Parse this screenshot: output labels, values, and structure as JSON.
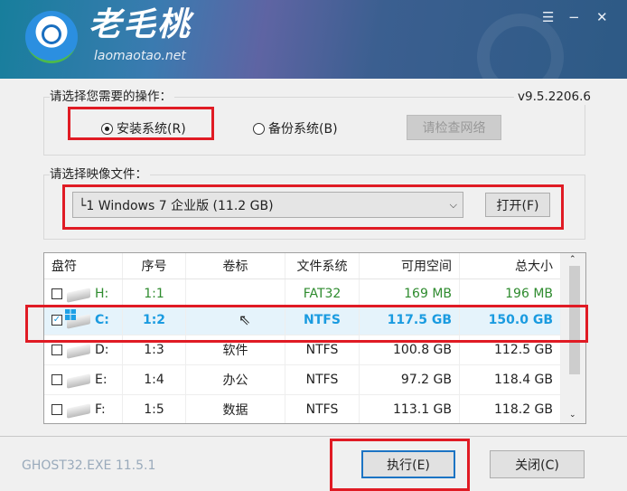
{
  "header": {
    "brand": "老毛桃",
    "domain": "laomaotao.net",
    "menu_icon": "☰",
    "minimize_icon": "−",
    "close_icon": "✕"
  },
  "operation": {
    "label": "请选择您需要的操作：",
    "version": "v9.5.2206.6",
    "install": "安装系统(R)",
    "backup": "备份系统(B)",
    "check_network": "请检查网络",
    "selected": "install"
  },
  "image": {
    "label": "请选择映像文件：",
    "selected": "└1 Windows 7 企业版 (11.2 GB)",
    "open": "打开(F)"
  },
  "table": {
    "headers": [
      "盘符",
      "序号",
      "卷标",
      "文件系统",
      "可用空间",
      "总大小"
    ],
    "rows": [
      {
        "drive": "H:",
        "index": "1:1",
        "label": "",
        "fs": "FAT32",
        "free": "169 MB",
        "total": "196 MB",
        "checked": false,
        "color": "#2e8b2e"
      },
      {
        "drive": "C:",
        "index": "1:2",
        "label": "",
        "fs": "NTFS",
        "free": "117.5 GB",
        "total": "150.0 GB",
        "checked": true,
        "color": "#1a9be0"
      },
      {
        "drive": "D:",
        "index": "1:3",
        "label": "软件",
        "fs": "NTFS",
        "free": "100.8 GB",
        "total": "112.5 GB",
        "checked": false,
        "color": "#222222"
      },
      {
        "drive": "E:",
        "index": "1:4",
        "label": "办公",
        "fs": "NTFS",
        "free": "97.2 GB",
        "total": "118.4 GB",
        "checked": false,
        "color": "#222222"
      },
      {
        "drive": "F:",
        "index": "1:5",
        "label": "数据",
        "fs": "NTFS",
        "free": "113.1 GB",
        "total": "118.2 GB",
        "checked": false,
        "color": "#222222"
      }
    ]
  },
  "footer": {
    "ghost": "GHOST32.EXE 11.5.1",
    "execute": "执行(E)",
    "close": "关闭(C)"
  },
  "colors": {
    "highlight": "#e01b24",
    "selected_row": "#e5f3fb"
  }
}
